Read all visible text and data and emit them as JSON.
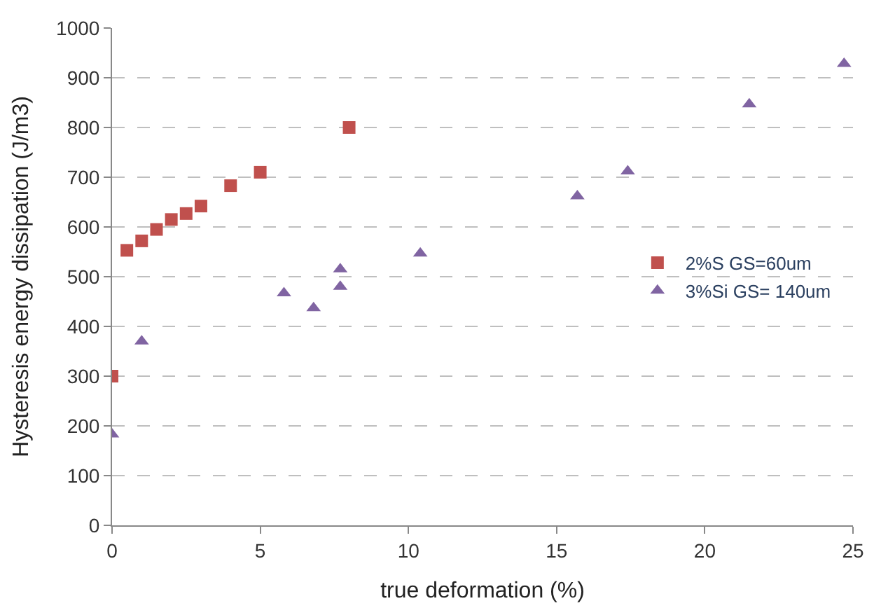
{
  "chart_data": {
    "type": "scatter",
    "xlabel": "true deformation (%)",
    "ylabel": "Hysteresis energy dissipation (J/m3)",
    "xlim": [
      0,
      25
    ],
    "xticks": [
      0,
      5,
      10,
      15,
      20,
      25
    ],
    "ylim": [
      0,
      1000
    ],
    "yticks": [
      0,
      100,
      200,
      300,
      400,
      500,
      600,
      700,
      800,
      900,
      1000
    ],
    "grid": "y",
    "legend": "right",
    "series": [
      {
        "name": "2%S GS=60um",
        "color": "#c0504d",
        "marker": "square",
        "x": [
          0,
          0.5,
          1,
          1.5,
          2,
          2.5,
          3,
          4,
          5,
          8
        ],
        "values": [
          300,
          553,
          572,
          595,
          615,
          627,
          642,
          683,
          710,
          800
        ]
      },
      {
        "name": "3%Si GS= 140um",
        "color": "#8064a2",
        "marker": "triangle",
        "x": [
          0,
          1,
          5.8,
          6.8,
          7.7,
          7.7,
          10.4,
          15.7,
          17.4,
          21.5,
          24.7
        ],
        "values": [
          183,
          370,
          467,
          437,
          515,
          480,
          547,
          662,
          712,
          847,
          928
        ]
      }
    ]
  }
}
